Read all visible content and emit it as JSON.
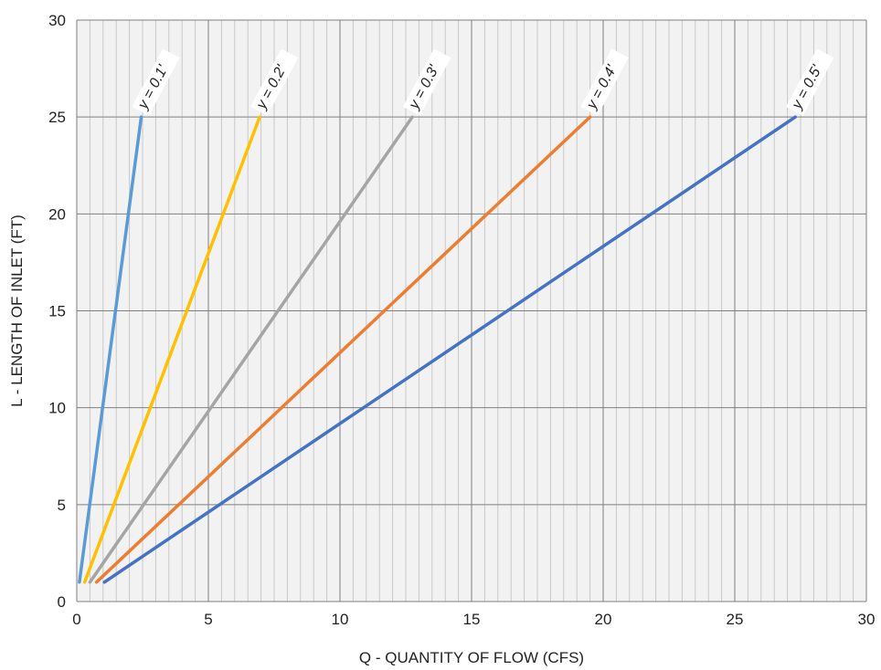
{
  "chart_data": {
    "type": "line",
    "title": "",
    "xlabel": "Q - QUANTITY OF FLOW (CFS)",
    "ylabel": "L - LENGTH OF INLET (FT)",
    "xlim": [
      0,
      30
    ],
    "ylim": [
      0,
      30
    ],
    "xticks": [
      0,
      5,
      10,
      15,
      20,
      25,
      30
    ],
    "yticks": [
      0,
      5,
      10,
      15,
      20,
      25,
      30
    ],
    "x_minor_step": 0.5,
    "grid": true,
    "legend": "none",
    "series": [
      {
        "name": "y = 0.1'",
        "color": "#5b9bd5",
        "points": [
          [
            0.1,
            1
          ],
          [
            2.45,
            25
          ]
        ]
      },
      {
        "name": "y = 0.2'",
        "color": "#ffc000",
        "points": [
          [
            0.3,
            1
          ],
          [
            6.95,
            25
          ]
        ]
      },
      {
        "name": "y = 0.3'",
        "color": "#a5a5a5",
        "points": [
          [
            0.5,
            1
          ],
          [
            12.75,
            25
          ]
        ]
      },
      {
        "name": "y = 0.4'",
        "color": "#ed7d31",
        "points": [
          [
            0.75,
            1
          ],
          [
            19.5,
            25
          ]
        ]
      },
      {
        "name": "y = 0.5'",
        "color": "#4472c4",
        "points": [
          [
            1.05,
            1
          ],
          [
            27.3,
            25
          ]
        ]
      }
    ],
    "plot_background": "#f2f2f2",
    "grid_major_color": "#7f7f7f",
    "grid_minor_color": "#c8c8c8"
  }
}
